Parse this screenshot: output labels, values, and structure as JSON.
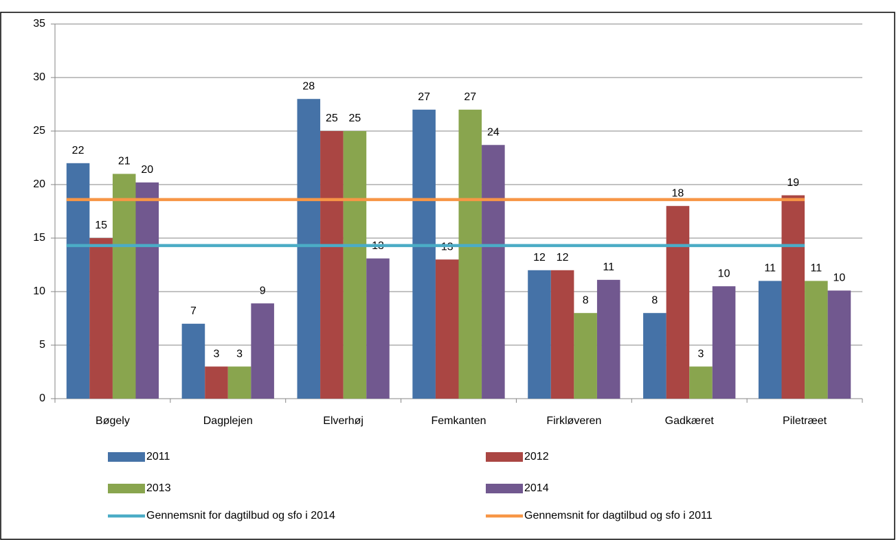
{
  "chart_data": {
    "type": "bar",
    "categories": [
      "Bøgely",
      "Dagplejen",
      "Elverhøj",
      "Femkanten",
      "Firkløveren",
      "Gadkæret",
      "Piletræet"
    ],
    "series": [
      {
        "name": "2011",
        "color": "#4572a7",
        "values": [
          22,
          7,
          28,
          27,
          12,
          8,
          11
        ]
      },
      {
        "name": "2012",
        "color": "#aa4643",
        "values": [
          15,
          3,
          25,
          13,
          12,
          18,
          19
        ]
      },
      {
        "name": "2013",
        "color": "#89a54e",
        "values": [
          21,
          3,
          25,
          27,
          8,
          3,
          11
        ]
      },
      {
        "name": "2014",
        "color": "#71588f",
        "values": [
          20.2,
          8.9,
          13.1,
          23.7,
          11.1,
          10.5,
          10.1
        ],
        "value_labels": [
          "20",
          "9",
          "13",
          "24",
          "11",
          "10",
          "10"
        ]
      }
    ],
    "reference_lines": [
      {
        "name": "Gennemsnit for dagtilbud og sfo i 2014",
        "color": "#4bacc6",
        "value": 14.3
      },
      {
        "name": "Gennemsnit for dagtilbud og sfo i 2011",
        "color": "#f79646",
        "value": 18.6
      }
    ],
    "ylim": [
      0,
      35
    ],
    "yticks": [
      0,
      5,
      10,
      15,
      20,
      25,
      30,
      35
    ],
    "grid": true
  }
}
